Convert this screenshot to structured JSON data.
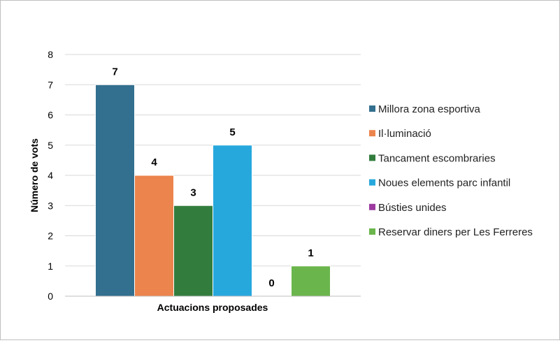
{
  "chart_data": {
    "type": "bar",
    "title": "",
    "xlabel": "Actuacions proposades",
    "ylabel": "Número de vots",
    "ylim": [
      0,
      8
    ],
    "yticks": [
      "0",
      "1",
      "2",
      "3",
      "4",
      "5",
      "6",
      "7",
      "8"
    ],
    "grid": true,
    "legend_position": "right",
    "series": [
      {
        "name": "Millora zona esportiva",
        "values": [
          7
        ],
        "color": "#336f8f"
      },
      {
        "name": "Il·luminació",
        "values": [
          4
        ],
        "color": "#ec844d"
      },
      {
        "name": "Tancament escombraries",
        "values": [
          3
        ],
        "color": "#327d3e"
      },
      {
        "name": "Noues elements parc infantil",
        "values": [
          5
        ],
        "color": "#27a8dd"
      },
      {
        "name": "Bústies unides",
        "values": [
          0
        ],
        "color": "#9c3aa0"
      },
      {
        "name": "Reservar diners per Les Ferreres",
        "values": [
          1
        ],
        "color": "#6ab54c"
      }
    ]
  }
}
